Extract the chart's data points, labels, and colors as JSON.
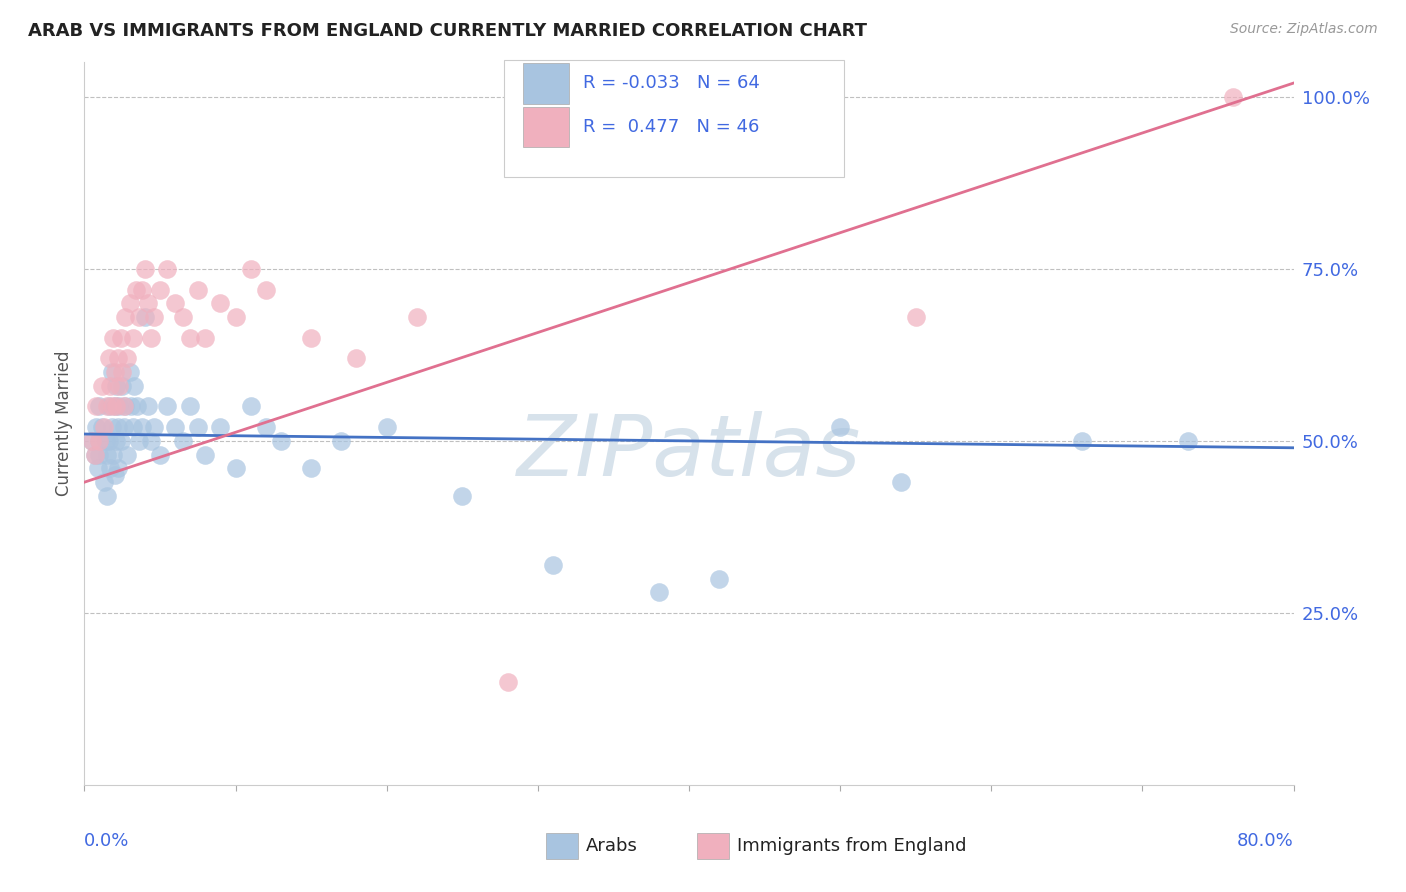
{
  "title": "ARAB VS IMMIGRANTS FROM ENGLAND CURRENTLY MARRIED CORRELATION CHART",
  "source": "Source: ZipAtlas.com",
  "ylabel": "Currently Married",
  "watermark": "ZIPatlas",
  "arab_color": "#a8c4e0",
  "england_color": "#f0b0be",
  "arab_line_color": "#4472c4",
  "england_line_color": "#e07090",
  "background": "#ffffff",
  "grid_color": "#c0c0c0",
  "text_color": "#4169e1",
  "arab_R": -0.033,
  "arab_N": 64,
  "england_R": 0.477,
  "england_N": 46,
  "xmin": 0.0,
  "xmax": 0.8,
  "ymin": 0.0,
  "ymax": 1.05,
  "arab_line_y0": 0.51,
  "arab_line_y1": 0.49,
  "england_line_y0": 0.44,
  "england_line_y1": 1.02,
  "arab_x": [
    0.005,
    0.007,
    0.008,
    0.009,
    0.01,
    0.01,
    0.01,
    0.012,
    0.013,
    0.014,
    0.015,
    0.015,
    0.016,
    0.016,
    0.017,
    0.018,
    0.018,
    0.019,
    0.02,
    0.02,
    0.021,
    0.021,
    0.022,
    0.022,
    0.023,
    0.024,
    0.025,
    0.026,
    0.027,
    0.028,
    0.03,
    0.031,
    0.032,
    0.033,
    0.035,
    0.036,
    0.038,
    0.04,
    0.042,
    0.044,
    0.046,
    0.05,
    0.055,
    0.06,
    0.065,
    0.07,
    0.075,
    0.08,
    0.09,
    0.1,
    0.11,
    0.12,
    0.13,
    0.15,
    0.17,
    0.2,
    0.25,
    0.31,
    0.38,
    0.42,
    0.5,
    0.54,
    0.66,
    0.73
  ],
  "arab_y": [
    0.5,
    0.48,
    0.52,
    0.46,
    0.5,
    0.55,
    0.48,
    0.52,
    0.44,
    0.5,
    0.48,
    0.42,
    0.55,
    0.5,
    0.46,
    0.52,
    0.6,
    0.48,
    0.55,
    0.45,
    0.58,
    0.5,
    0.52,
    0.46,
    0.55,
    0.5,
    0.58,
    0.52,
    0.55,
    0.48,
    0.6,
    0.55,
    0.52,
    0.58,
    0.55,
    0.5,
    0.52,
    0.68,
    0.55,
    0.5,
    0.52,
    0.48,
    0.55,
    0.52,
    0.5,
    0.55,
    0.52,
    0.48,
    0.52,
    0.46,
    0.55,
    0.52,
    0.5,
    0.46,
    0.5,
    0.52,
    0.42,
    0.32,
    0.28,
    0.3,
    0.52,
    0.44,
    0.5,
    0.5
  ],
  "england_x": [
    0.005,
    0.007,
    0.008,
    0.01,
    0.012,
    0.013,
    0.015,
    0.016,
    0.017,
    0.018,
    0.019,
    0.02,
    0.021,
    0.022,
    0.023,
    0.024,
    0.025,
    0.026,
    0.027,
    0.028,
    0.03,
    0.032,
    0.034,
    0.036,
    0.038,
    0.04,
    0.042,
    0.044,
    0.046,
    0.05,
    0.055,
    0.06,
    0.065,
    0.07,
    0.075,
    0.08,
    0.09,
    0.1,
    0.11,
    0.12,
    0.15,
    0.18,
    0.22,
    0.28,
    0.55,
    0.76
  ],
  "england_y": [
    0.5,
    0.48,
    0.55,
    0.5,
    0.58,
    0.52,
    0.55,
    0.62,
    0.58,
    0.55,
    0.65,
    0.6,
    0.55,
    0.62,
    0.58,
    0.65,
    0.6,
    0.55,
    0.68,
    0.62,
    0.7,
    0.65,
    0.72,
    0.68,
    0.72,
    0.75,
    0.7,
    0.65,
    0.68,
    0.72,
    0.75,
    0.7,
    0.68,
    0.65,
    0.72,
    0.65,
    0.7,
    0.68,
    0.75,
    0.72,
    0.65,
    0.62,
    0.68,
    0.15,
    0.68,
    1.0
  ]
}
